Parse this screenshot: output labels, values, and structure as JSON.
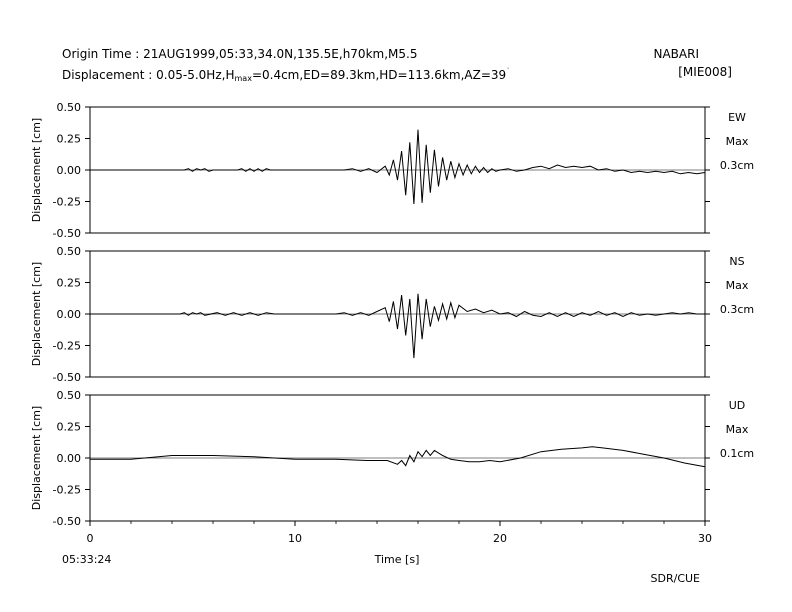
{
  "header": {
    "origin_label": "Origin Time : ",
    "origin_value": "21AUG1999,05:33,34.0N,135.5E,h70km,M5.5",
    "disp_label": "Displacement : ",
    "disp_band": "0.05-5.0Hz",
    "hmax_prefix": "H",
    "hmax_sub": "max",
    "hmax_value": "=0.4cm",
    "ed": "ED=89.3km",
    "hd": "HD=113.6km",
    "az": "AZ=39",
    "az_mark": "˙",
    "station": "NABARI",
    "station_code": "[MIE008]"
  },
  "footer": {
    "start_time": "05:33:24",
    "credit": "SDR/CUE"
  },
  "chart_data": {
    "type": "line",
    "xlabel": "Time [s]",
    "xlim": [
      0,
      30
    ],
    "x_ticks": [
      "0",
      "10",
      "20",
      "30"
    ],
    "panels": [
      {
        "component": "EW",
        "max_label": "Max",
        "max_value": "0.3cm",
        "ylabel": "Displacement [cm]",
        "ylim": [
          -0.5,
          0.5
        ],
        "y_ticks": [
          "0.50",
          "0.25",
          "0.00",
          "-0.25",
          "-0.50"
        ],
        "trace": {
          "x": [
            0,
            4.6,
            4.8,
            5.0,
            5.2,
            5.4,
            5.6,
            5.8,
            6.0,
            7.2,
            7.4,
            7.6,
            7.8,
            8.0,
            8.2,
            8.4,
            8.6,
            8.8,
            12.4,
            12.8,
            13.2,
            13.6,
            14.0,
            14.4,
            14.6,
            14.8,
            15.0,
            15.2,
            15.4,
            15.6,
            15.8,
            16.0,
            16.2,
            16.4,
            16.6,
            16.8,
            17.0,
            17.2,
            17.4,
            17.6,
            17.8,
            18.0,
            18.2,
            18.4,
            18.6,
            18.8,
            19.0,
            19.2,
            19.4,
            19.6,
            19.8,
            20.0,
            20.4,
            20.8,
            21.2,
            21.6,
            22.0,
            22.4,
            22.8,
            23.2,
            23.6,
            24.0,
            24.4,
            24.8,
            25.2,
            25.6,
            26.0,
            26.4,
            26.8,
            27.2,
            27.6,
            28.0,
            28.4,
            28.8,
            29.2,
            29.6,
            30.0
          ],
          "y": [
            0.0,
            0.0,
            0.01,
            -0.01,
            0.01,
            0.0,
            0.01,
            -0.01,
            0.0,
            0.0,
            0.01,
            -0.01,
            0.01,
            -0.01,
            0.01,
            -0.01,
            0.01,
            0.0,
            0.0,
            0.01,
            -0.01,
            0.01,
            -0.02,
            0.03,
            -0.04,
            0.08,
            -0.08,
            0.15,
            -0.2,
            0.22,
            -0.27,
            0.32,
            -0.26,
            0.2,
            -0.18,
            0.16,
            -0.13,
            0.1,
            -0.08,
            0.07,
            -0.06,
            0.05,
            -0.04,
            0.04,
            -0.03,
            0.03,
            -0.02,
            0.02,
            -0.02,
            0.01,
            -0.01,
            0.0,
            0.01,
            -0.01,
            0.0,
            0.02,
            0.03,
            0.01,
            0.04,
            0.02,
            0.03,
            0.02,
            0.03,
            0.0,
            0.01,
            -0.01,
            0.0,
            -0.02,
            -0.01,
            -0.02,
            -0.01,
            -0.02,
            -0.01,
            -0.03,
            -0.02,
            -0.03,
            -0.02
          ]
        }
      },
      {
        "component": "NS",
        "max_label": "Max",
        "max_value": "0.3cm",
        "ylabel": "Displacement [cm]",
        "ylim": [
          -0.5,
          0.5
        ],
        "y_ticks": [
          "0.50",
          "0.25",
          "0.00",
          "-0.25",
          "-0.50"
        ],
        "trace": {
          "x": [
            0,
            4.4,
            4.6,
            4.8,
            5.0,
            5.2,
            5.4,
            5.6,
            6.2,
            6.6,
            7.0,
            7.4,
            7.8,
            8.2,
            8.6,
            9.0,
            12.0,
            12.4,
            12.8,
            13.2,
            13.6,
            14.0,
            14.4,
            14.6,
            14.8,
            15.0,
            15.2,
            15.4,
            15.6,
            15.8,
            16.0,
            16.2,
            16.4,
            16.6,
            16.8,
            17.0,
            17.2,
            17.4,
            17.6,
            17.8,
            18.0,
            18.4,
            18.8,
            19.2,
            19.6,
            20.0,
            20.4,
            20.8,
            21.2,
            21.6,
            22.0,
            22.4,
            22.8,
            23.2,
            23.6,
            24.0,
            24.4,
            24.8,
            25.2,
            25.6,
            26.0,
            26.4,
            26.8,
            27.2,
            27.6,
            28.0,
            28.4,
            28.8,
            29.2,
            29.6,
            30.0
          ],
          "y": [
            0.0,
            0.0,
            0.01,
            -0.01,
            0.01,
            0.0,
            0.01,
            -0.01,
            0.01,
            -0.01,
            0.01,
            -0.01,
            0.01,
            -0.01,
            0.01,
            0.0,
            0.0,
            0.01,
            -0.01,
            0.01,
            -0.01,
            0.02,
            0.05,
            -0.06,
            0.1,
            -0.12,
            0.15,
            -0.17,
            0.12,
            -0.35,
            0.16,
            -0.2,
            0.12,
            -0.1,
            0.06,
            -0.05,
            0.08,
            -0.04,
            0.09,
            -0.03,
            0.07,
            0.02,
            0.04,
            0.01,
            0.03,
            0.0,
            0.01,
            -0.02,
            0.02,
            -0.01,
            -0.02,
            0.01,
            -0.02,
            0.01,
            -0.02,
            0.01,
            -0.01,
            0.02,
            -0.01,
            0.01,
            -0.02,
            0.01,
            -0.01,
            0.0,
            -0.01,
            0.0,
            0.01,
            0.0,
            0.01,
            0.0,
            0.0
          ]
        }
      },
      {
        "component": "UD",
        "max_label": "Max",
        "max_value": "0.1cm",
        "ylabel": "Displacement [cm]",
        "ylim": [
          -0.5,
          0.5
        ],
        "y_ticks": [
          "0.50",
          "0.25",
          "0.00",
          "-0.25",
          "-0.50"
        ],
        "trace": {
          "x": [
            0,
            2,
            4,
            6,
            8,
            10,
            12,
            13.5,
            14.5,
            15.0,
            15.2,
            15.4,
            15.6,
            15.8,
            16.0,
            16.2,
            16.4,
            16.6,
            16.8,
            17.2,
            17.6,
            18.0,
            18.5,
            19.0,
            19.5,
            20.0,
            21.0,
            22.0,
            23.0,
            24.0,
            24.5,
            25.0,
            26.0,
            27.0,
            28.0,
            29.0,
            30.0
          ],
          "y": [
            -0.01,
            -0.01,
            0.02,
            0.02,
            0.01,
            -0.01,
            -0.01,
            -0.02,
            -0.02,
            -0.05,
            -0.02,
            -0.06,
            0.02,
            -0.03,
            0.05,
            0.01,
            0.06,
            0.02,
            0.06,
            0.02,
            -0.01,
            -0.02,
            -0.03,
            -0.03,
            -0.02,
            -0.03,
            0.0,
            0.05,
            0.07,
            0.08,
            0.09,
            0.08,
            0.06,
            0.03,
            0.0,
            -0.04,
            -0.07
          ]
        }
      }
    ]
  }
}
